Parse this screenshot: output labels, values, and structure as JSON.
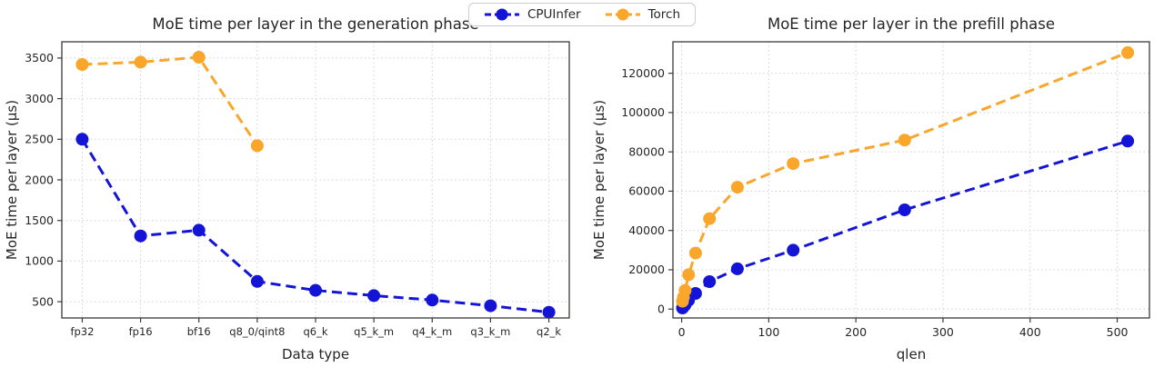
{
  "legend": {
    "items": [
      {
        "label": "CPUInfer",
        "color": "#1414d7"
      },
      {
        "label": "Torch",
        "color": "#f9a62a"
      }
    ]
  },
  "chart_data": [
    {
      "type": "line",
      "id": "generation-phase-chart",
      "title": "MoE time per layer in the generation phase",
      "xlabel": "Data type",
      "ylabel": "MoE time per layer (μs)",
      "x_type": "categorical",
      "categories": [
        "fp32",
        "fp16",
        "bf16",
        "q8_0/qint8",
        "q6_k",
        "q5_k_m",
        "q4_k_m",
        "q3_k_m",
        "q2_k"
      ],
      "xlim": [
        -0.35,
        8.35
      ],
      "ylim": [
        300,
        3700
      ],
      "yticks": [
        500,
        1000,
        1500,
        2000,
        2500,
        3000,
        3500
      ],
      "grid": true,
      "line_style": "dashed",
      "series": [
        {
          "name": "CPUInfer",
          "color": "#1414d7",
          "values": [
            2500,
            1310,
            1380,
            750,
            640,
            575,
            520,
            450,
            370
          ]
        },
        {
          "name": "Torch",
          "color": "#f9a62a",
          "values": [
            3420,
            3450,
            3510,
            2420
          ]
        }
      ]
    },
    {
      "type": "line",
      "id": "prefill-phase-chart",
      "title": "MoE time per layer in the prefill phase",
      "xlabel": "qlen",
      "ylabel": "MoE time per layer (μs)",
      "x_type": "numeric",
      "x": [
        1,
        2,
        4,
        8,
        16,
        32,
        64,
        128,
        256,
        512
      ],
      "xlim": [
        -10,
        537
      ],
      "ylim": [
        -4500,
        136000
      ],
      "xticks": [
        0,
        100,
        200,
        300,
        400,
        500
      ],
      "yticks": [
        0,
        20000,
        40000,
        60000,
        80000,
        100000,
        120000
      ],
      "grid": true,
      "line_style": "dashed",
      "series": [
        {
          "name": "CPUInfer",
          "color": "#1414d7",
          "values": [
            600,
            1100,
            2200,
            4500,
            8000,
            14000,
            20500,
            30000,
            50500,
            85500
          ]
        },
        {
          "name": "Torch",
          "color": "#f9a62a",
          "values": [
            4000,
            6000,
            9500,
            17500,
            28500,
            46000,
            62000,
            74000,
            86000,
            130500
          ]
        }
      ]
    }
  ]
}
